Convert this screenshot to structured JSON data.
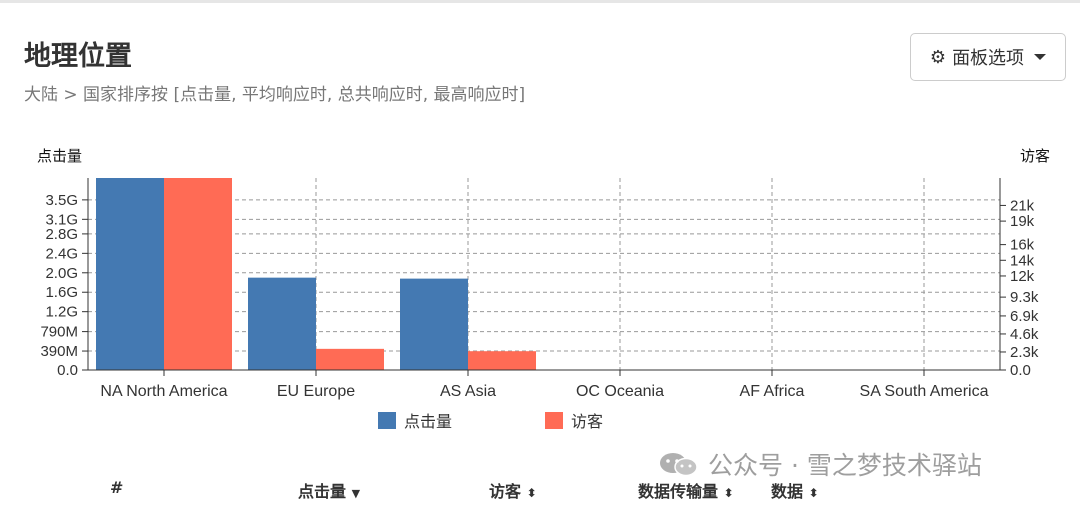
{
  "header": {
    "title": "地理位置",
    "subtitle": "大陆 > 国家排序按 [点击量, 平均响应时, 总共响应时, 最高响应时]"
  },
  "panel_button": {
    "icon": "gear-icon",
    "label": "面板选项"
  },
  "chart_data": {
    "type": "bar",
    "categories": [
      "NA North America",
      "EU Europe",
      "AS Asia",
      "OC Oceania",
      "AF Africa",
      "SA South America"
    ],
    "series": [
      {
        "name": "点击量",
        "axis": "left",
        "color": "#4479b2",
        "values": [
          3.95,
          1.9,
          1.88,
          0,
          0,
          0
        ]
      },
      {
        "name": "访客",
        "axis": "right",
        "color": "#ff6b55",
        "values": [
          24500,
          2700,
          2400,
          0,
          0,
          0
        ]
      }
    ],
    "y_left": {
      "label": "点击量",
      "range": [
        0,
        3.95
      ],
      "ticks": [
        {
          "v": 0,
          "t": "0.0"
        },
        {
          "v": 0.39,
          "t": "390M"
        },
        {
          "v": 0.79,
          "t": "790M"
        },
        {
          "v": 1.2,
          "t": "1.2G"
        },
        {
          "v": 1.6,
          "t": "1.6G"
        },
        {
          "v": 2.0,
          "t": "2.0G"
        },
        {
          "v": 2.4,
          "t": "2.4G"
        },
        {
          "v": 2.8,
          "t": "2.8G"
        },
        {
          "v": 3.1,
          "t": "3.1G"
        },
        {
          "v": 3.5,
          "t": "3.5G"
        }
      ]
    },
    "y_right": {
      "label": "访客",
      "range": [
        0,
        24500
      ],
      "ticks": [
        {
          "v": 0,
          "t": "0.0"
        },
        {
          "v": 2300,
          "t": "2.3k"
        },
        {
          "v": 4600,
          "t": "4.6k"
        },
        {
          "v": 6900,
          "t": "6.9k"
        },
        {
          "v": 9300,
          "t": "9.3k"
        },
        {
          "v": 12000,
          "t": "12k"
        },
        {
          "v": 14000,
          "t": "14k"
        },
        {
          "v": 16000,
          "t": "16k"
        },
        {
          "v": 19000,
          "t": "19k"
        },
        {
          "v": 21000,
          "t": "21k"
        }
      ]
    },
    "grid": true,
    "legend_position": "bottom-center"
  },
  "table_header": {
    "hash": "#",
    "hits": "点击量",
    "visitors": "访客",
    "bandwidth": "数据传输量",
    "data": "数据"
  },
  "watermark": "公众号 · 雪之梦技术驿站"
}
